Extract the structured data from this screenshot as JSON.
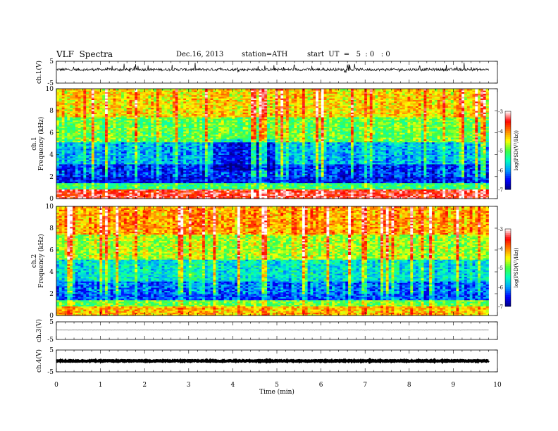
{
  "header": {
    "title": "VLF  Spectra",
    "date": "Dec.16, 2013",
    "station": "station=ATH",
    "start": "start  UT  =   5  : 0   : 0"
  },
  "chart_data": [
    {
      "type": "line",
      "panel": "ch1-waveform",
      "ylabel": "ch.1(V)",
      "ylim": [
        -5,
        5
      ],
      "yticks": [
        "5",
        "-5"
      ],
      "xlim": [
        0,
        10
      ],
      "data_extent_min": 9.8,
      "baseline_v": 1.2,
      "noise_amplitude_v": 0.6,
      "trace_color": "#000000"
    },
    {
      "type": "heatmap",
      "panel": "ch1-spectrogram",
      "ylabel": "ch.1\nFrequency (kHz)",
      "ylabel_lines": [
        "ch.1",
        "Frequency (kHz)"
      ],
      "ylim": [
        0,
        10
      ],
      "yticks": [
        "0",
        "2",
        "4",
        "6",
        "8",
        "10"
      ],
      "xlim": [
        0,
        10
      ],
      "data_extent_min": 9.8,
      "colorbar": {
        "label": "log(PSD(V²/Hz))",
        "range": [
          -7,
          -3
        ],
        "ticks": [
          "-3",
          "-4",
          "-5",
          "-6",
          "-7"
        ],
        "colors": [
          "#000080",
          "#0000ff",
          "#00a0ff",
          "#00ffc0",
          "#40ff40",
          "#ffff00",
          "#ff8000",
          "#ff0000",
          "#ffffff"
        ]
      }
    },
    {
      "type": "heatmap",
      "panel": "ch2-spectrogram",
      "ylabel": "ch.2\nFrequency (kHz)",
      "ylabel_lines": [
        "ch.2",
        "Frequency (kHz)"
      ],
      "ylim": [
        0,
        10
      ],
      "yticks": [
        "0",
        "2",
        "4",
        "6",
        "8",
        "10"
      ],
      "xlim": [
        0,
        10
      ],
      "data_extent_min": 9.8,
      "colorbar": {
        "label": "log(PSD(V²/Hz))",
        "range": [
          -7,
          -3
        ],
        "ticks": [
          "-3",
          "-4",
          "-5",
          "-6",
          "-7"
        ],
        "colors": [
          "#000080",
          "#0000ff",
          "#00a0ff",
          "#00ffc0",
          "#40ff40",
          "#ffff00",
          "#ff8000",
          "#ff0000",
          "#ffffff"
        ]
      }
    },
    {
      "type": "line",
      "panel": "ch3-waveform",
      "ylabel": "ch.3(V)",
      "ylim": [
        -5,
        5
      ],
      "yticks": [
        "5",
        "-5"
      ],
      "xlim": [
        0,
        10
      ],
      "data_extent_min": 9.8,
      "baseline_v": 0.3,
      "noise_amplitude_v": 0.05,
      "trace_color": "#000000"
    },
    {
      "type": "line",
      "panel": "ch4-waveform",
      "ylabel": "ch.4(V)",
      "ylim": [
        -5,
        5
      ],
      "yticks": [
        "5",
        "-5"
      ],
      "xlim": [
        0,
        10
      ],
      "xticks": [
        "0",
        "1",
        "2",
        "3",
        "4",
        "5",
        "6",
        "7",
        "8",
        "9",
        "10"
      ],
      "xlabel": "Time  (min)",
      "data_extent_min": 9.8,
      "baseline_v": 0.0,
      "noise_amplitude_v": 0.2,
      "trace_color": "#000000"
    }
  ]
}
